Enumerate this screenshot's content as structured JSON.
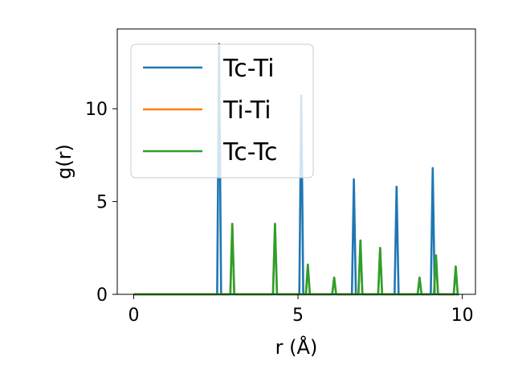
{
  "chart_data": {
    "type": "line",
    "xlabel": "r (Å)",
    "ylabel": "g(r)",
    "xlim": [
      -0.5,
      10.4
    ],
    "ylim": [
      0,
      14.3
    ],
    "xticks": [
      0,
      5,
      10
    ],
    "yticks": [
      0,
      5,
      10
    ],
    "grid": false,
    "legend_position": "top-left",
    "series": [
      {
        "name": "Tc-Ti",
        "color": "#1f77b4",
        "peaks": [
          [
            2.6,
            13.5
          ],
          [
            5.1,
            10.7
          ],
          [
            6.7,
            6.2
          ],
          [
            8.0,
            5.8
          ],
          [
            9.1,
            6.8
          ]
        ]
      },
      {
        "name": "Ti-Ti",
        "color": "#ff7f0e",
        "peaks": [
          [
            3.0,
            3.8
          ],
          [
            4.3,
            3.8
          ],
          [
            5.3,
            1.6
          ],
          [
            6.1,
            0.9
          ],
          [
            6.9,
            2.9
          ],
          [
            7.5,
            2.5
          ],
          [
            8.7,
            0.9
          ],
          [
            9.2,
            2.1
          ],
          [
            9.8,
            1.5
          ]
        ]
      },
      {
        "name": "Tc-Tc",
        "color": "#2ca02c",
        "peaks": [
          [
            3.0,
            3.8
          ],
          [
            4.3,
            3.8
          ],
          [
            5.3,
            1.6
          ],
          [
            6.1,
            0.9
          ],
          [
            6.9,
            2.9
          ],
          [
            7.5,
            2.5
          ],
          [
            8.7,
            0.9
          ],
          [
            9.2,
            2.1
          ],
          [
            9.8,
            1.5
          ]
        ]
      }
    ]
  }
}
